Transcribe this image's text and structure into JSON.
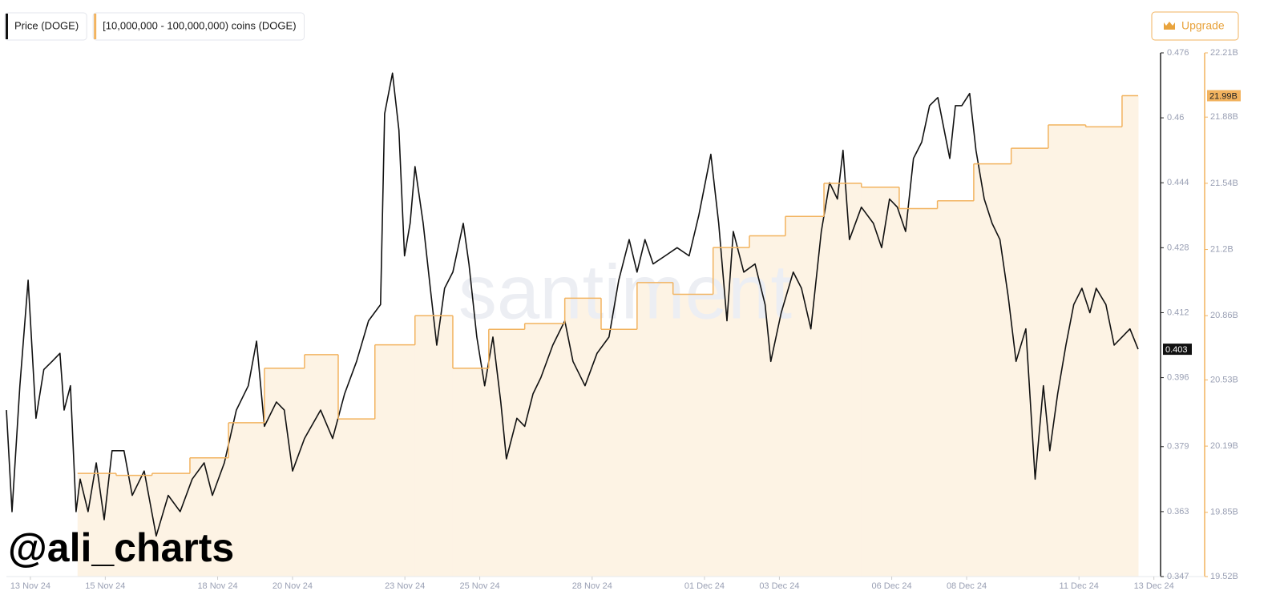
{
  "chart_data": {
    "type": "line",
    "watermark": "santiment",
    "credit": "@ali_charts",
    "button": "Upgrade",
    "xlim": [
      -0.64,
      30.2
    ],
    "xticks": [
      {
        "value": 0,
        "label": "13 Nov 24"
      },
      {
        "value": 2,
        "label": "15 Nov 24"
      },
      {
        "value": 5,
        "label": "18 Nov 24"
      },
      {
        "value": 7,
        "label": "20 Nov 24"
      },
      {
        "value": 10,
        "label": "23 Nov 24"
      },
      {
        "value": 12,
        "label": "25 Nov 24"
      },
      {
        "value": 15,
        "label": "28 Nov 24"
      },
      {
        "value": 18,
        "label": "01 Dec 24"
      },
      {
        "value": 20,
        "label": "03 Dec 24"
      },
      {
        "value": 23,
        "label": "06 Dec 24"
      },
      {
        "value": 25,
        "label": "08 Dec 24"
      },
      {
        "value": 28,
        "label": "11 Dec 24"
      },
      {
        "value": 30,
        "label": "13 Dec 24"
      }
    ],
    "ylim": [
      0.347,
      0.476
    ],
    "yticks": [
      0.476,
      0.46,
      0.444,
      0.428,
      0.412,
      0.396,
      0.379,
      0.363,
      0.347
    ],
    "y2lim": [
      19.52,
      22.21
    ],
    "y2ticks": [
      {
        "value": 22.21,
        "label": "22.21B"
      },
      {
        "value": 21.88,
        "label": "21.88B"
      },
      {
        "value": 21.54,
        "label": "21.54B"
      },
      {
        "value": 21.2,
        "label": "21.2B"
      },
      {
        "value": 20.86,
        "label": "20.86B"
      },
      {
        "value": 20.53,
        "label": "20.53B"
      },
      {
        "value": 20.19,
        "label": "20.19B"
      },
      {
        "value": 19.85,
        "label": "19.85B"
      },
      {
        "value": 19.52,
        "label": "19.52B"
      }
    ],
    "series": [
      {
        "name": "Price (DOGE)",
        "color": "#111111",
        "axis": "y",
        "current_value": {
          "value": 0.403,
          "label": "0.403"
        },
        "x": [
          -0.64,
          -0.49,
          -0.28,
          -0.06,
          0.15,
          0.36,
          0.58,
          0.79,
          0.9,
          1.07,
          1.22,
          1.33,
          1.54,
          1.76,
          1.97,
          2.18,
          2.5,
          2.72,
          3.04,
          3.36,
          3.68,
          4.0,
          4.32,
          4.64,
          4.86,
          5.18,
          5.5,
          5.82,
          6.04,
          6.25,
          6.57,
          6.78,
          7.0,
          7.32,
          7.75,
          8.07,
          8.39,
          8.71,
          9.03,
          9.35,
          9.46,
          9.67,
          9.84,
          9.99,
          10.14,
          10.27,
          10.49,
          10.68,
          10.85,
          11.06,
          11.28,
          11.56,
          11.71,
          11.92,
          12.13,
          12.35,
          12.56,
          12.71,
          12.99,
          13.2,
          13.42,
          13.63,
          13.95,
          14.27,
          14.49,
          14.81,
          15.13,
          15.45,
          15.71,
          15.99,
          16.2,
          16.41,
          16.63,
          16.95,
          17.27,
          17.59,
          17.85,
          18.17,
          18.38,
          18.6,
          18.77,
          19.05,
          19.35,
          19.62,
          19.77,
          20.05,
          20.37,
          20.59,
          20.84,
          21.12,
          21.34,
          21.55,
          21.7,
          21.87,
          22.19,
          22.51,
          22.73,
          22.94,
          23.15,
          23.37,
          23.58,
          23.8,
          24.01,
          24.23,
          24.4,
          24.55,
          24.7,
          24.87,
          25.08,
          25.25,
          25.47,
          25.68,
          25.89,
          26.11,
          26.32,
          26.58,
          26.83,
          27.05,
          27.22,
          27.43,
          27.65,
          27.86,
          28.08,
          28.29,
          28.46,
          28.72,
          28.94,
          29.15,
          29.36,
          29.58
        ],
        "values": [
          0.388,
          0.363,
          0.394,
          0.42,
          0.386,
          0.398,
          0.4,
          0.402,
          0.388,
          0.394,
          0.363,
          0.371,
          0.363,
          0.375,
          0.361,
          0.378,
          0.378,
          0.367,
          0.373,
          0.357,
          0.367,
          0.363,
          0.371,
          0.375,
          0.367,
          0.375,
          0.388,
          0.394,
          0.405,
          0.384,
          0.39,
          0.388,
          0.373,
          0.381,
          0.388,
          0.381,
          0.392,
          0.4,
          0.41,
          0.414,
          0.461,
          0.471,
          0.457,
          0.426,
          0.434,
          0.448,
          0.434,
          0.418,
          0.404,
          0.418,
          0.422,
          0.434,
          0.424,
          0.406,
          0.394,
          0.406,
          0.39,
          0.376,
          0.386,
          0.384,
          0.392,
          0.396,
          0.404,
          0.41,
          0.4,
          0.394,
          0.402,
          0.406,
          0.42,
          0.43,
          0.422,
          0.43,
          0.424,
          0.426,
          0.428,
          0.426,
          0.436,
          0.451,
          0.434,
          0.41,
          0.432,
          0.422,
          0.424,
          0.414,
          0.4,
          0.412,
          0.422,
          0.418,
          0.408,
          0.432,
          0.444,
          0.44,
          0.452,
          0.43,
          0.438,
          0.434,
          0.428,
          0.44,
          0.438,
          0.432,
          0.45,
          0.454,
          0.463,
          0.465,
          0.457,
          0.45,
          0.463,
          0.463,
          0.466,
          0.452,
          0.44,
          0.434,
          0.43,
          0.416,
          0.4,
          0.408,
          0.371,
          0.394,
          0.378,
          0.392,
          0.404,
          0.414,
          0.418,
          0.412,
          0.418,
          0.414,
          0.404,
          0.406,
          0.408,
          0.403
        ]
      },
      {
        "name": "[10,000,000 - 100,000,000) coins (DOGE)",
        "color": "#f2b35f",
        "fill": "#fdf3e4",
        "axis": "y2",
        "step": true,
        "current_value": {
          "value": 21.99,
          "label": "21.99B"
        },
        "x": [
          1.26,
          2.29,
          3.25,
          4.26,
          5.29,
          6.25,
          7.32,
          8.22,
          9.2,
          10.27,
          11.28,
          12.24,
          13.2,
          14.27,
          15.24,
          16.2,
          17.16,
          18.23,
          19.2,
          20.16,
          21.19,
          22.19,
          23.2,
          24.22,
          25.19,
          26.19,
          27.18,
          28.18,
          29.15,
          29.58
        ],
        "values": [
          20.05,
          20.04,
          20.05,
          20.13,
          20.31,
          20.59,
          20.66,
          20.33,
          20.71,
          20.86,
          20.59,
          20.79,
          20.82,
          20.95,
          20.79,
          21.03,
          20.97,
          21.21,
          21.27,
          21.37,
          21.54,
          21.52,
          21.41,
          21.45,
          21.64,
          21.72,
          21.84,
          21.83,
          21.99,
          21.99
        ]
      }
    ]
  }
}
